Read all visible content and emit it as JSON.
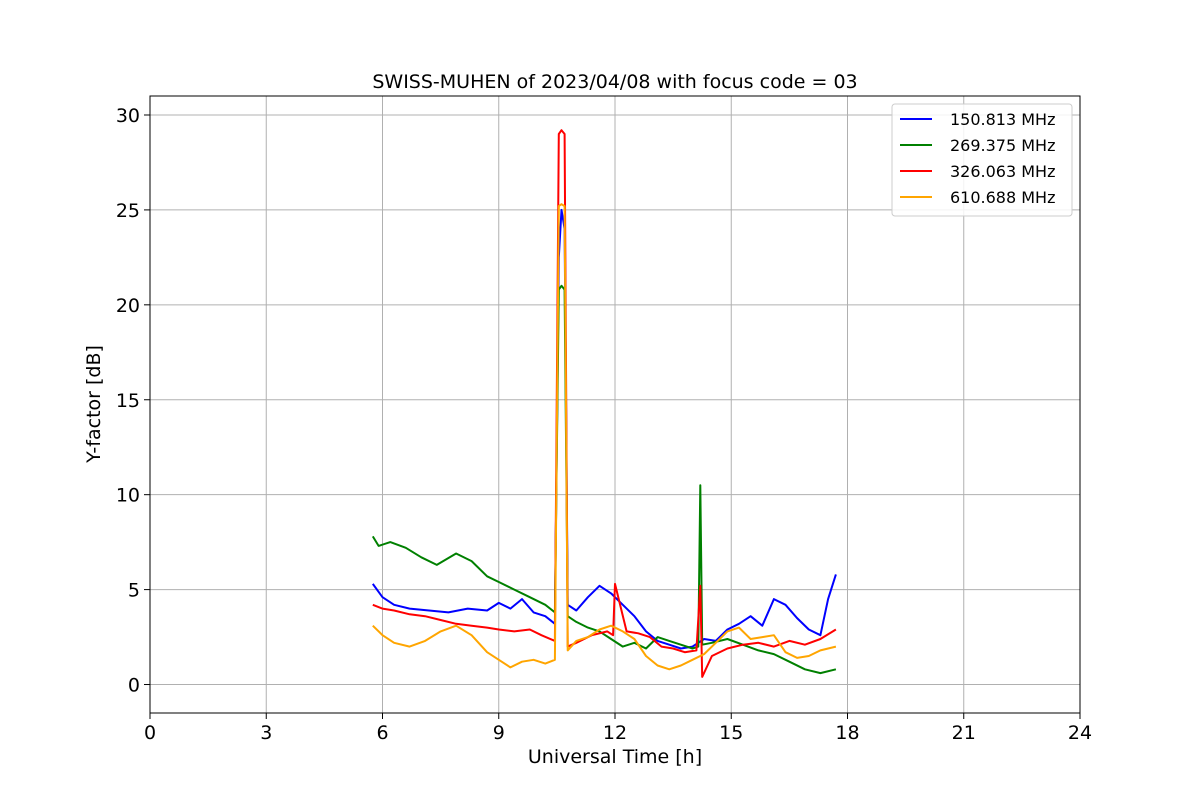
{
  "chart_data": {
    "type": "line",
    "title": "SWISS-MUHEN of 2023/04/08 with focus code = 03",
    "xlabel": "Universal Time [h]",
    "ylabel": "Y-factor [dB]",
    "xlim": [
      0,
      24
    ],
    "ylim": [
      -1.5,
      31
    ],
    "xticks": [
      0,
      3,
      6,
      9,
      12,
      15,
      18,
      21,
      24
    ],
    "yticks": [
      0,
      5,
      10,
      15,
      20,
      25,
      30
    ],
    "grid": true,
    "legend_position": "top-right",
    "series": [
      {
        "name": "150.813 MHz",
        "color": "#0000ff",
        "x": [
          5.75,
          6.0,
          6.3,
          6.7,
          7.2,
          7.7,
          8.2,
          8.7,
          9.0,
          9.3,
          9.6,
          9.9,
          10.2,
          10.45,
          10.55,
          10.62,
          10.7,
          10.78,
          11.0,
          11.3,
          11.6,
          11.9,
          12.2,
          12.5,
          12.8,
          13.1,
          13.4,
          13.7,
          14.0,
          14.3,
          14.6,
          14.9,
          15.2,
          15.5,
          15.8,
          16.1,
          16.4,
          16.7,
          17.0,
          17.3,
          17.5,
          17.7
        ],
        "y": [
          5.3,
          4.6,
          4.2,
          4.0,
          3.9,
          3.8,
          4.0,
          3.9,
          4.3,
          4.0,
          4.5,
          3.8,
          3.6,
          3.2,
          22.5,
          25.0,
          24.0,
          4.2,
          3.9,
          4.6,
          5.2,
          4.8,
          4.2,
          3.6,
          2.8,
          2.3,
          2.1,
          1.9,
          2.0,
          2.4,
          2.3,
          2.9,
          3.2,
          3.6,
          3.1,
          4.5,
          4.2,
          3.5,
          2.9,
          2.6,
          4.5,
          5.8
        ]
      },
      {
        "name": "269.375 MHz",
        "color": "#008000",
        "x": [
          5.75,
          5.9,
          6.2,
          6.6,
          7.0,
          7.4,
          7.9,
          8.3,
          8.7,
          9.0,
          9.4,
          9.8,
          10.2,
          10.45,
          10.55,
          10.62,
          10.7,
          10.78,
          11.0,
          11.3,
          11.6,
          11.9,
          12.2,
          12.5,
          12.8,
          13.1,
          13.4,
          13.7,
          14.0,
          14.15,
          14.2,
          14.25,
          14.5,
          14.9,
          15.3,
          15.7,
          16.1,
          16.5,
          16.9,
          17.3,
          17.7
        ],
        "y": [
          7.8,
          7.3,
          7.5,
          7.2,
          6.7,
          6.3,
          6.9,
          6.5,
          5.7,
          5.4,
          5.0,
          4.6,
          4.2,
          3.8,
          20.8,
          21.0,
          20.8,
          3.6,
          3.3,
          3.0,
          2.8,
          2.4,
          2.0,
          2.2,
          1.9,
          2.5,
          2.3,
          2.1,
          1.9,
          2.0,
          10.5,
          2.1,
          2.2,
          2.4,
          2.1,
          1.8,
          1.6,
          1.2,
          0.8,
          0.6,
          0.8
        ]
      },
      {
        "name": "326.063 MHz",
        "color": "#ff0000",
        "x": [
          5.75,
          6.0,
          6.3,
          6.7,
          7.1,
          7.5,
          7.9,
          8.3,
          8.7,
          9.0,
          9.4,
          9.8,
          10.1,
          10.45,
          10.55,
          10.62,
          10.7,
          10.78,
          11.0,
          11.4,
          11.8,
          11.95,
          12.0,
          12.3,
          12.6,
          12.9,
          13.2,
          13.5,
          13.8,
          14.1,
          14.2,
          14.25,
          14.5,
          14.9,
          15.3,
          15.7,
          16.1,
          16.5,
          16.9,
          17.3,
          17.7
        ],
        "y": [
          4.2,
          4.0,
          3.9,
          3.7,
          3.6,
          3.4,
          3.2,
          3.1,
          3.0,
          2.9,
          2.8,
          2.9,
          2.6,
          2.3,
          29.0,
          29.2,
          29.0,
          2.0,
          2.2,
          2.6,
          2.8,
          2.6,
          5.3,
          2.8,
          2.7,
          2.5,
          2.0,
          1.9,
          1.7,
          1.8,
          5.2,
          0.4,
          1.5,
          1.9,
          2.1,
          2.2,
          2.0,
          2.3,
          2.1,
          2.4,
          2.9
        ]
      },
      {
        "name": "610.688 MHz",
        "color": "#ffa500",
        "x": [
          5.75,
          6.0,
          6.3,
          6.7,
          7.1,
          7.5,
          7.9,
          8.3,
          8.7,
          9.0,
          9.3,
          9.6,
          9.9,
          10.2,
          10.45,
          10.55,
          10.62,
          10.7,
          10.78,
          11.0,
          11.3,
          11.6,
          11.9,
          12.2,
          12.5,
          12.8,
          13.1,
          13.4,
          13.7,
          14.0,
          14.3,
          14.6,
          14.9,
          15.2,
          15.5,
          15.8,
          16.1,
          16.4,
          16.7,
          17.0,
          17.3,
          17.7
        ],
        "y": [
          3.1,
          2.6,
          2.2,
          2.0,
          2.3,
          2.8,
          3.1,
          2.6,
          1.7,
          1.3,
          0.9,
          1.2,
          1.3,
          1.1,
          1.3,
          25.2,
          25.3,
          25.2,
          1.8,
          2.3,
          2.5,
          2.9,
          3.1,
          2.8,
          2.4,
          1.5,
          1.0,
          0.8,
          1.0,
          1.3,
          1.6,
          2.2,
          2.8,
          3.0,
          2.4,
          2.5,
          2.6,
          1.7,
          1.4,
          1.5,
          1.8,
          2.0
        ]
      }
    ]
  }
}
